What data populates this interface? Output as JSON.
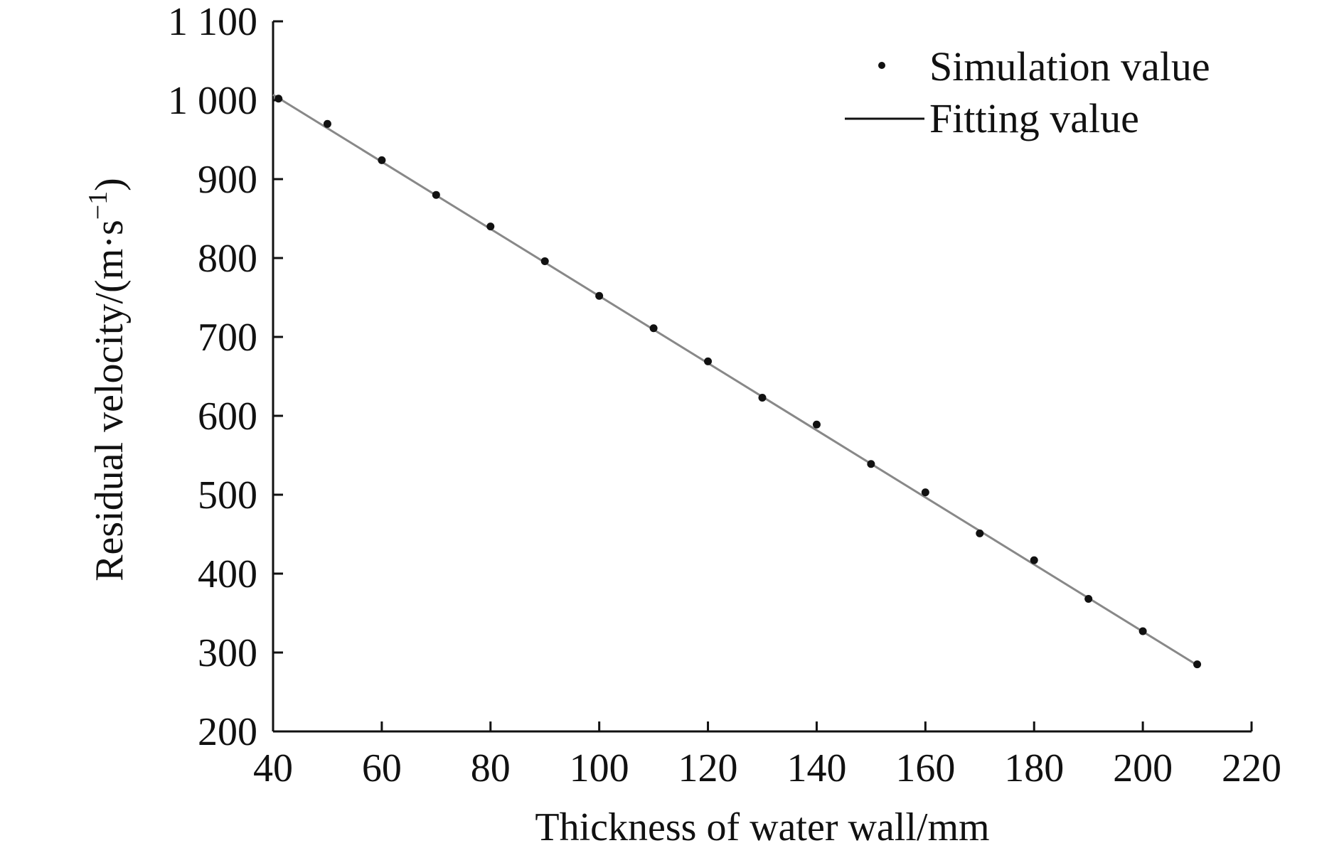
{
  "chart_data": {
    "type": "scatter",
    "title": "",
    "xlabel": "Thickness of water wall/mm",
    "ylabel": "Residual velocity/(m·s",
    "ylabel_sup": "−1",
    "ylabel_close": ")",
    "xlim": [
      40,
      220
    ],
    "ylim": [
      200,
      1100
    ],
    "x_ticks": [
      40,
      60,
      80,
      100,
      120,
      140,
      160,
      180,
      200,
      220
    ],
    "y_ticks": [
      200,
      300,
      400,
      500,
      600,
      700,
      800,
      900,
      1000,
      1100
    ],
    "x_tick_labels": [
      "40",
      "60",
      "80",
      "100",
      "120",
      "140",
      "160",
      "180",
      "200",
      "220"
    ],
    "y_tick_labels": [
      "200",
      "300",
      "400",
      "500",
      "600",
      "700",
      "800",
      "900",
      "1 000",
      "1 100"
    ],
    "grid": false,
    "legend_position": "top-right",
    "series": [
      {
        "name": "Simulation value",
        "kind": "scatter",
        "color": "#111111",
        "x": [
          41,
          50,
          60,
          70,
          80,
          90,
          100,
          110,
          120,
          130,
          140,
          150,
          160,
          170,
          180,
          190,
          200,
          210
        ],
        "y": [
          1002,
          970,
          924,
          880,
          840,
          796,
          752,
          711,
          669,
          623,
          589,
          539,
          503,
          451,
          417,
          368,
          327,
          285
        ]
      },
      {
        "name": "Fitting value",
        "kind": "line",
        "color": "#888888",
        "x": [
          40,
          210
        ],
        "y": [
          1007,
          284
        ]
      }
    ]
  }
}
